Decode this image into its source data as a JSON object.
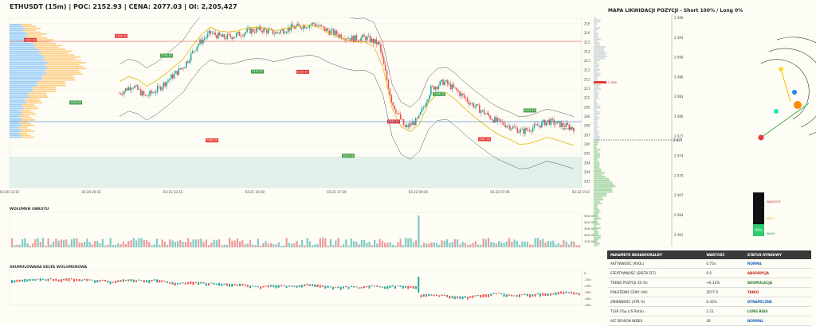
{
  "header": {
    "title": "ETHUSDT (15m) | POC: 2152.93 | CENA: 2077.03 | OI: 2,205,427"
  },
  "panels": {
    "volume_label": "WOLUMEN OBROTU",
    "delta_label": "SKUMULOWANA DELTA WOLUMENOWA"
  },
  "chart_data": [
    {
      "type": "candlestick",
      "title": "ETHUSDT (15m) | POC: 2152.93 | CENA: 2077.03 | OI: 2,205,427",
      "x_ticks": [
        "03-20 13:15",
        "03-20 20:15",
        "03-21 03:15",
        "03-21 10:30",
        "03-21 17:30",
        "03-22 00:45",
        "03-22 07:45",
        "03-22 15:00"
      ],
      "y_ticks": [
        2032,
        2040,
        2048,
        2056,
        2064,
        2072,
        2080,
        2088,
        2096,
        2104,
        2112,
        2120,
        2128,
        2136,
        2144,
        2152,
        2160,
        2168
      ],
      "ylim": [
        2028,
        2172
      ],
      "close_path": [
        2108,
        2115,
        2105,
        2112,
        2122,
        2132,
        2150,
        2160,
        2156,
        2158,
        2162,
        2163,
        2160,
        2164,
        2166,
        2168,
        2162,
        2158,
        2155,
        2156,
        2150,
        2100,
        2078,
        2085,
        2112,
        2118,
        2110,
        2100,
        2092,
        2084,
        2080,
        2075,
        2079,
        2084,
        2081,
        2078
      ],
      "annotations": [
        "2152.93",
        "2098.99",
        "2156.35",
        "2139.43",
        "2066.32",
        "2125.67",
        "2125.47",
        "2053.10",
        "2082.57",
        "2106.35",
        "2067.44",
        "2092.18"
      ],
      "price_label": "2077.03",
      "lines": [
        "POC",
        "VAH/VAL",
        "VWAP",
        "EMA"
      ]
    },
    {
      "type": "bar",
      "title": "WOLUMEN OBROTU",
      "y_ticks": [
        "500 000",
        "400 000",
        "300 000",
        "200 000",
        "100 000"
      ],
      "spike_label": "03-22 00:45"
    },
    {
      "type": "line",
      "title": "SKUMULOWANA DELTA WOLUMENOWA",
      "y_ticks": [
        "0",
        "-150",
        "-250",
        "-350",
        "-450",
        "-550"
      ]
    },
    {
      "type": "area",
      "title": "MAPA LIKWIDACJI POZYCJI - Short 100% / Long 0%",
      "y_ticks": [
        "2 096",
        "2 093",
        "2 090",
        "2 086",
        "2 083",
        "2 080",
        "2 077",
        "2 074",
        "2 070",
        "2 067",
        "2 064",
        "2 061"
      ],
      "price_label": "2 077",
      "marker_label": "2 086"
    }
  ],
  "gauge": {
    "top_label": "WIDZIOTY",
    "mid_label": "NETO",
    "bottom_label": "WAGA",
    "value": "95%"
  },
  "table": {
    "headers": [
      "PARAMETR BEHAWIORALNY",
      "WARTOŚĆ",
      "STATUS RYNKOWY"
    ],
    "rows": [
      {
        "param": "AKTYWNOŚĆ (RVOL)",
        "value": "0.75x",
        "status": "NORMA",
        "color": "#1565c0"
      },
      {
        "param": "EFEKTYWNOŚĆ (DELTA EFF)",
        "value": "0.5",
        "status": "ABSORPCJA",
        "color": "#c62828"
      },
      {
        "param": "TREND POZYCJI (OI %)",
        "value": "+0.12%",
        "status": "AKUMULACJA",
        "color": "#2e7d32"
      },
      {
        "param": "POŁOŻENIE CENY (VA)",
        "value": "2077.0",
        "status": "TANIO",
        "color": "#c62828"
      },
      {
        "param": "ZMIENNOŚĆ (ATR %)",
        "value": "0.43%",
        "status": "DYNAMICZNE",
        "color": "#1565c0"
      },
      {
        "param": "TLSR (Top L/S Ratio)",
        "value": "2.21",
        "status": "LONG BIAS",
        "color": "#2e7d32"
      },
      {
        "param": "ALT SEASON INDEX",
        "value": "30",
        "status": "NORMAL",
        "color": "#1565c0"
      }
    ]
  },
  "colors": {
    "up": "#26a69a",
    "down": "#ef5350",
    "poc": "#e53935",
    "vwap": "#e6b800",
    "profile_blue": "#90caf9",
    "profile_orange": "#ffcc80",
    "gauge": "#111111"
  }
}
